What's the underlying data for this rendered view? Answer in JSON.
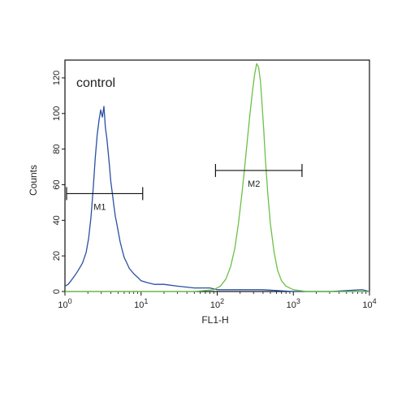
{
  "chart_data": {
    "type": "line",
    "xscale": "log",
    "xlim": [
      1,
      10000
    ],
    "ylim": [
      0,
      130
    ],
    "xlabel": "FL1-H",
    "ylabel": "Counts",
    "annotation": "control",
    "x_ticks": [
      {
        "value": 1,
        "base": "10",
        "exp": "0"
      },
      {
        "value": 10,
        "base": "10",
        "exp": "1"
      },
      {
        "value": 100,
        "base": "10",
        "exp": "2"
      },
      {
        "value": 1000,
        "base": "10",
        "exp": "3"
      },
      {
        "value": 10000,
        "base": "10",
        "exp": "4"
      }
    ],
    "y_ticks": [
      {
        "value": 0,
        "label": "0"
      },
      {
        "value": 20,
        "label": "20"
      },
      {
        "value": 40,
        "label": "40"
      },
      {
        "value": 60,
        "label": "60"
      },
      {
        "value": 80,
        "label": "80"
      },
      {
        "value": 100,
        "label": "100"
      },
      {
        "value": 120,
        "label": "120"
      }
    ],
    "gates": [
      {
        "label": "M1",
        "x_start": 1.05,
        "x_end": 10.5,
        "y": 55
      },
      {
        "label": "M2",
        "x_start": 95,
        "x_end": 1300,
        "y": 68
      }
    ],
    "series": [
      {
        "color": "#2a4fa3",
        "x": [
          1.0,
          1.1,
          1.2,
          1.35,
          1.5,
          1.7,
          1.9,
          2.05,
          2.2,
          2.35,
          2.5,
          2.65,
          2.8,
          2.95,
          3.1,
          3.25,
          3.4,
          3.55,
          3.7,
          3.85,
          4.0,
          4.2,
          4.4,
          4.6,
          4.8,
          5.0,
          5.3,
          5.6,
          6.0,
          6.5,
          7.0,
          8.0,
          9.0,
          10,
          12,
          15,
          20,
          30,
          50,
          80,
          100,
          200,
          400,
          1000,
          3000,
          8000,
          10000
        ],
        "y": [
          3,
          4,
          6,
          9,
          12,
          16,
          22,
          30,
          42,
          58,
          75,
          88,
          96,
          102,
          98,
          104,
          92,
          86,
          78,
          70,
          62,
          55,
          48,
          42,
          38,
          34,
          28,
          24,
          19,
          16,
          13,
          10,
          8,
          6,
          5,
          4,
          4,
          3,
          2,
          2,
          1,
          1,
          1,
          0,
          0,
          1,
          0
        ]
      },
      {
        "color": "#6cc046",
        "x": [
          1,
          10,
          50,
          90,
          110,
          130,
          150,
          170,
          190,
          210,
          230,
          250,
          270,
          290,
          310,
          330,
          350,
          370,
          390,
          410,
          430,
          460,
          500,
          560,
          620,
          700,
          800,
          1000,
          1500,
          3000,
          10000
        ],
        "y": [
          0,
          0,
          0,
          1,
          3,
          7,
          14,
          24,
          38,
          54,
          70,
          86,
          100,
          112,
          122,
          128,
          126,
          118,
          104,
          90,
          74,
          56,
          38,
          22,
          12,
          6,
          3,
          1,
          0,
          0,
          0
        ]
      }
    ]
  }
}
